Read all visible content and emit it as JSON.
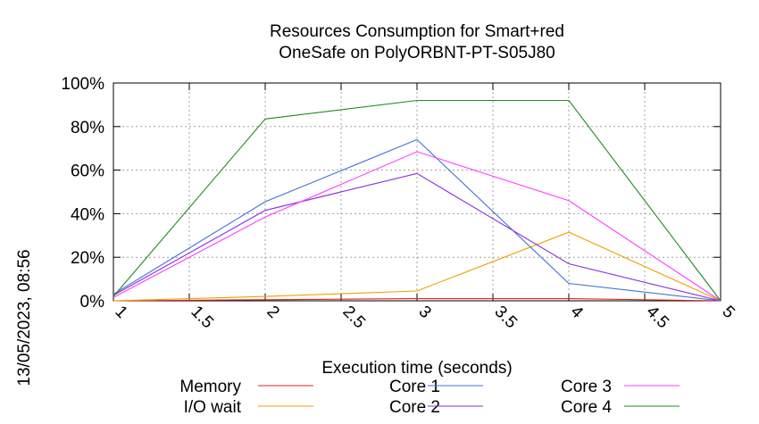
{
  "chart_data": {
    "type": "line",
    "title_lines": [
      "Resources Consumption for Smart+red",
      "OneSafe on PolyORBNT-PT-S05J80"
    ],
    "xlabel": "Execution time (seconds)",
    "ylabel": "",
    "side_label": "13/05/2023, 08:56",
    "xlim": [
      1,
      5
    ],
    "ylim": [
      0,
      100
    ],
    "x_ticks": [
      "1",
      "1.5",
      "2",
      "2.5",
      "3",
      "3.5",
      "4",
      "4.5",
      "5"
    ],
    "y_ticks": [
      "0%",
      "20%",
      "40%",
      "60%",
      "80%",
      "100%"
    ],
    "grid": true,
    "legend_position": "bottom",
    "x": [
      1,
      2,
      3,
      4,
      5
    ],
    "series": [
      {
        "name": "Memory",
        "color": "#e02020",
        "values": [
          0,
          0.5,
          1,
          1,
          0
        ]
      },
      {
        "name": "I/O wait",
        "color": "#f0a000",
        "values": [
          0,
          2,
          4.5,
          31.5,
          0
        ]
      },
      {
        "name": "Core 1",
        "color": "#4070d8",
        "values": [
          3,
          45.5,
          74,
          8,
          0
        ]
      },
      {
        "name": "Core 2",
        "color": "#8a2be2",
        "values": [
          2.5,
          41.5,
          58.5,
          17,
          0
        ]
      },
      {
        "name": "Core 3",
        "color": "#ff3cff",
        "values": [
          1.5,
          38.5,
          68.5,
          46,
          0
        ]
      },
      {
        "name": "Core 4",
        "color": "#1e8c1e",
        "values": [
          2,
          83.5,
          92,
          92,
          0
        ]
      }
    ]
  }
}
